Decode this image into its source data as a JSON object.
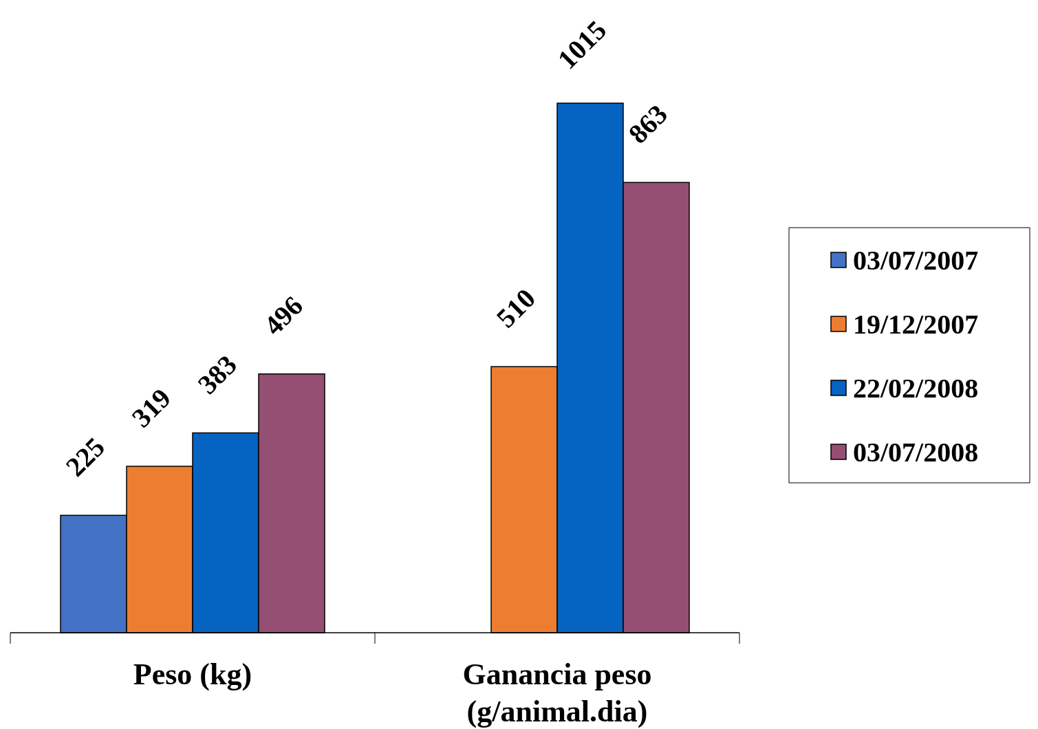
{
  "chart_data": {
    "type": "bar",
    "categories": [
      "Peso (kg)",
      "Ganancia peso (g/animal.dia)"
    ],
    "series": [
      {
        "name": "03/07/2007",
        "color": "#4472c4",
        "values": [
          225,
          null
        ]
      },
      {
        "name": "19/12/2007",
        "color": "#ed7d31",
        "values": [
          319,
          510
        ]
      },
      {
        "name": "22/02/2008",
        "color": "#0563c1",
        "values": [
          383,
          1015
        ]
      },
      {
        "name": "03/07/2008",
        "color": "#954f72",
        "values": [
          496,
          863
        ]
      }
    ],
    "data_labels": true,
    "legend": "right"
  }
}
